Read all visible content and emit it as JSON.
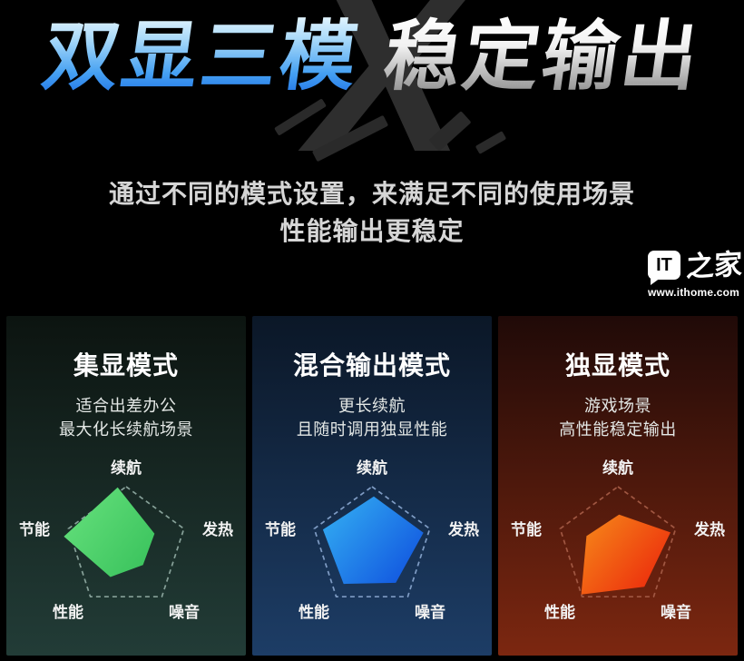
{
  "page": {
    "background": "#000000"
  },
  "hero": {
    "title_part1": "双显三模",
    "title_part2": "稳定输出",
    "watermark": "X",
    "title_blue_gradient": [
      "#eaf8ff",
      "#45a0f2",
      "#1e6fe4"
    ],
    "title_silver_gradient": [
      "#ffffff",
      "#858585"
    ],
    "subtitle_line1": "通过不同的模式设置，来满足不同的使用场景",
    "subtitle_line2": "性能输出更稳定"
  },
  "logo": {
    "badge_text": "IT",
    "brand_text": "之家",
    "url": "www.ithome.com"
  },
  "cards": [
    {
      "title": "集显模式",
      "desc_line1": "适合出差办公",
      "desc_line2": "最大化长续航场景",
      "bg_top": "#0c1410",
      "bg_bottom": "#223c37"
    },
    {
      "title": "混合输出模式",
      "desc_line1": "更长续航",
      "desc_line2": "且随时调用独显性能",
      "bg_top": "#0b1727",
      "bg_bottom": "#1d3d66"
    },
    {
      "title": "独显模式",
      "desc_line1": "游戏场景",
      "desc_line2": "高性能稳定输出",
      "bg_top": "#200a08",
      "bg_bottom": "#7c2710"
    }
  ],
  "chart_data": [
    {
      "type": "radar",
      "title": "集显模式",
      "axes": [
        "续航",
        "发热",
        "噪音",
        "性能",
        "节能"
      ],
      "values": [
        1.0,
        0.52,
        0.4,
        0.55,
        1.04
      ],
      "value_range": [
        0,
        1
      ],
      "tilt_deg": -8,
      "fill_gradient": [
        "#68e27e",
        "#3cc45e"
      ],
      "outline_color": "#86a098",
      "outline_style": "dashed",
      "grid": false,
      "legend": "none"
    },
    {
      "type": "radar",
      "title": "混合输出模式",
      "axes": [
        "续航",
        "发热",
        "噪音",
        "性能",
        "节能"
      ],
      "values": [
        0.84,
        0.88,
        0.7,
        0.76,
        0.86
      ],
      "value_range": [
        0,
        1
      ],
      "tilt_deg": 2,
      "fill_gradient": [
        "#35b3f3",
        "#1257e0"
      ],
      "outline_color": "#7f9cc4",
      "outline_style": "dashed",
      "grid": false,
      "legend": "none"
    },
    {
      "type": "radar",
      "title": "独显模式",
      "axes": [
        "续航",
        "发热",
        "噪音",
        "性能",
        "节能"
      ],
      "values": [
        0.54,
        0.9,
        0.78,
        0.98,
        0.55
      ],
      "value_range": [
        0,
        1
      ],
      "tilt_deg": 2,
      "fill_gradient": [
        "#f68b1a",
        "#ec2a0c"
      ],
      "outline_color": "#a05742",
      "outline_style": "dashed",
      "grid": false,
      "legend": "none"
    }
  ]
}
